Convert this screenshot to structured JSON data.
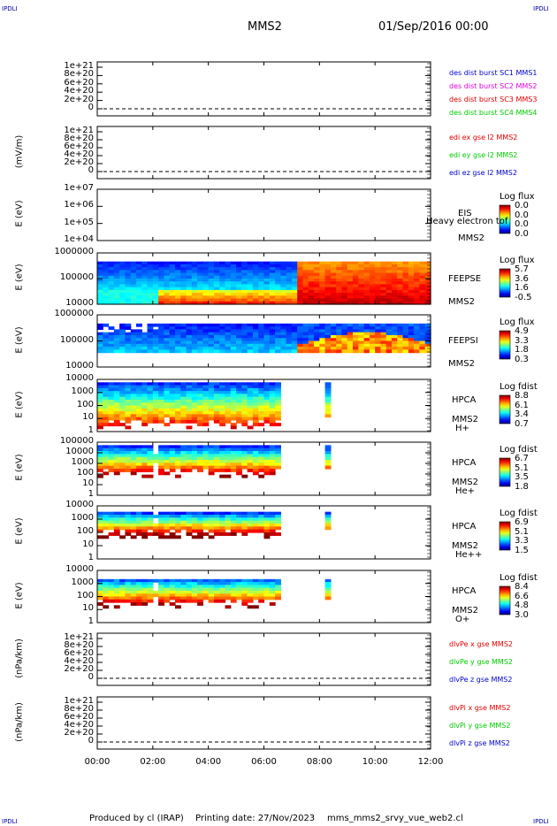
{
  "corners": {
    "top_left": "IPDLI",
    "top_right": "IPDLI",
    "bottom_left": "IPDLI",
    "bottom_right": "IPDLI"
  },
  "header": {
    "spacecraft": "MMS2",
    "datetime": "01/Sep/2016 00:00"
  },
  "footer": {
    "produced": "Produced by cl (IRAP)",
    "printing": "Printing date: 27/Nov/2023",
    "file": "mms_mms2_srvy_vue_web2.cl"
  },
  "x_axis": {
    "ticks": [
      "00:00",
      "02:00",
      "04:00",
      "06:00",
      "08:00",
      "10:00",
      "12:00"
    ]
  },
  "colors": {
    "red": "#dd0000",
    "magenta": "#dd00dd",
    "green": "#00cc00",
    "blue": "#0000cc"
  },
  "chart_data": [
    {
      "type": "line",
      "ylabel": "",
      "yticks": [
        "1e+21",
        "8e+20",
        "6e+20",
        "4e+20",
        "2e+20",
        "0"
      ],
      "legend": [
        {
          "text": "des dist burst SC1 MMS1",
          "color": "#0000cc"
        },
        {
          "text": "des dist burst SC2 MMS2",
          "color": "#dd00dd"
        },
        {
          "text": "des dist burst SC3 MMS3",
          "color": "#dd0000"
        },
        {
          "text": "des dist burst SC4 MMS4",
          "color": "#00cc00"
        }
      ]
    },
    {
      "type": "line",
      "ylabel": "(mV/m)",
      "yticks": [
        "1e+21",
        "8e+20",
        "6e+20",
        "4e+20",
        "2e+20",
        "0"
      ],
      "legend": [
        {
          "text": "edi ex gse l2 MMS2",
          "color": "#dd0000"
        },
        {
          "text": "edi ey gse l2 MMS2",
          "color": "#00cc00"
        },
        {
          "text": "edi ez gse l2 MMS2",
          "color": "#0000cc"
        }
      ]
    },
    {
      "type": "heatmap",
      "ylabel": "E (eV)",
      "yticks": [
        "1e+07",
        "1e+06",
        "1e+05",
        "1e+04"
      ],
      "side": [
        "EIS",
        "MMS2"
      ],
      "overlay": "Heavy electron tof",
      "cb_title": "Log flux",
      "cb_values": [
        "0.0",
        "0.0",
        "0.0",
        "0.0"
      ]
    },
    {
      "type": "heatmap",
      "ylabel": "E (eV)",
      "yticks": [
        "1000000",
        "100000",
        "10000"
      ],
      "side": [
        "FEEPSE",
        "MMS2"
      ],
      "cb_title": "Log flux",
      "cb_values": [
        "5.7",
        "3.6",
        "1.6",
        "-0.5"
      ]
    },
    {
      "type": "heatmap",
      "ylabel": "E (eV)",
      "yticks": [
        "1000000",
        "100000",
        "10000"
      ],
      "side": [
        "FEEPSI",
        "MMS2"
      ],
      "cb_title": "Log flux",
      "cb_values": [
        "4.9",
        "3.3",
        "1.8",
        "0.3"
      ]
    },
    {
      "type": "heatmap",
      "ylabel": "E (eV)",
      "yticks": [
        "10000",
        "1000",
        "100",
        "10",
        "1"
      ],
      "side": [
        "HPCA",
        "MMS2",
        "H+"
      ],
      "cb_title": "Log fdist",
      "cb_values": [
        "8.8",
        "6.1",
        "3.4",
        "0.7"
      ]
    },
    {
      "type": "heatmap",
      "ylabel": "E (eV)",
      "yticks": [
        "100000",
        "10000",
        "1000",
        "100",
        "10",
        "1"
      ],
      "side": [
        "HPCA",
        "MMS2",
        "He+"
      ],
      "cb_title": "Log fdist",
      "cb_values": [
        "6.7",
        "5.1",
        "3.5",
        "1.8"
      ]
    },
    {
      "type": "heatmap",
      "ylabel": "E (eV)",
      "yticks": [
        "10000",
        "1000",
        "100",
        "10",
        "1"
      ],
      "side": [
        "HPCA",
        "MMS2",
        "He++"
      ],
      "cb_title": "Log fdist",
      "cb_values": [
        "6.9",
        "5.1",
        "3.3",
        "1.5"
      ]
    },
    {
      "type": "heatmap",
      "ylabel": "E (eV)",
      "yticks": [
        "10000",
        "1000",
        "100",
        "10",
        "1"
      ],
      "side": [
        "HPCA",
        "MMS2",
        "O+"
      ],
      "cb_title": "Log fdist",
      "cb_values": [
        "8.4",
        "6.6",
        "4.8",
        "3.0"
      ]
    },
    {
      "type": "line",
      "ylabel": "(nPa/km)",
      "yticks": [
        "1e+21",
        "8e+20",
        "6e+20",
        "4e+20",
        "2e+20",
        "0"
      ],
      "legend": [
        {
          "text": "dlvPe x gse MMS2",
          "color": "#dd0000"
        },
        {
          "text": "dlvPe y gse MMS2",
          "color": "#00cc00"
        },
        {
          "text": "dlvPe z gse MMS2",
          "color": "#0000cc"
        }
      ]
    },
    {
      "type": "line",
      "ylabel": "(nPa/km)",
      "yticks": [
        "1e+21",
        "8e+20",
        "6e+20",
        "4e+20",
        "2e+20",
        "0"
      ],
      "legend": [
        {
          "text": "dlvPi x gse MMS2",
          "color": "#dd0000"
        },
        {
          "text": "dlvPi y gse MMS2",
          "color": "#00cc00"
        },
        {
          "text": "dlvPi z gse MMS2",
          "color": "#0000cc"
        }
      ]
    }
  ]
}
